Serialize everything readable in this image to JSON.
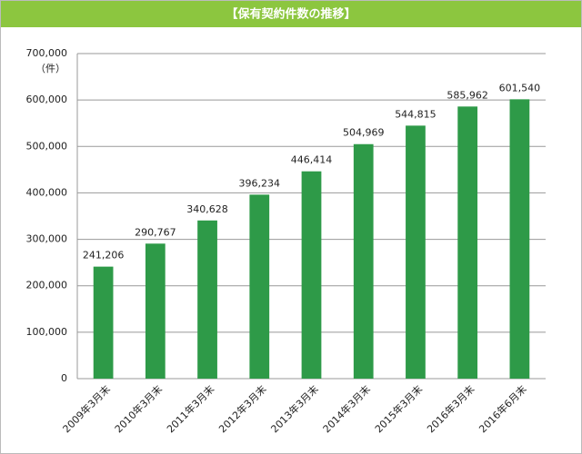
{
  "chart_data": {
    "type": "bar",
    "title": "【保有契約件数の推移】",
    "y_unit": "（件）",
    "categories": [
      "2009年3月末",
      "2010年3月末",
      "2011年3月末",
      "2012年3月末",
      "2013年3月末",
      "2014年3月末",
      "2015年3月末",
      "2016年3月末",
      "2016年6月末"
    ],
    "values": [
      241206,
      290767,
      340628,
      396234,
      446414,
      504969,
      544815,
      585962,
      601540
    ],
    "value_labels": [
      "241,206",
      "290,767",
      "340,628",
      "396,234",
      "446,414",
      "504,969",
      "544,815",
      "585,962",
      "601,540"
    ],
    "color": "#2e9a48",
    "ylim": [
      0,
      700000
    ],
    "yticks": [
      0,
      {
        "value": 100000,
        "label": "100,000"
      },
      {
        "value": 200000,
        "label": "200,000"
      },
      {
        "value": 300000,
        "label": "300,000"
      },
      {
        "value": 400000,
        "label": "400,000"
      },
      {
        "value": 500000,
        "label": "500,000"
      },
      {
        "value": 600000,
        "label": "600,000"
      },
      {
        "value": 700000,
        "label": "700,000"
      }
    ],
    "grid": true
  }
}
